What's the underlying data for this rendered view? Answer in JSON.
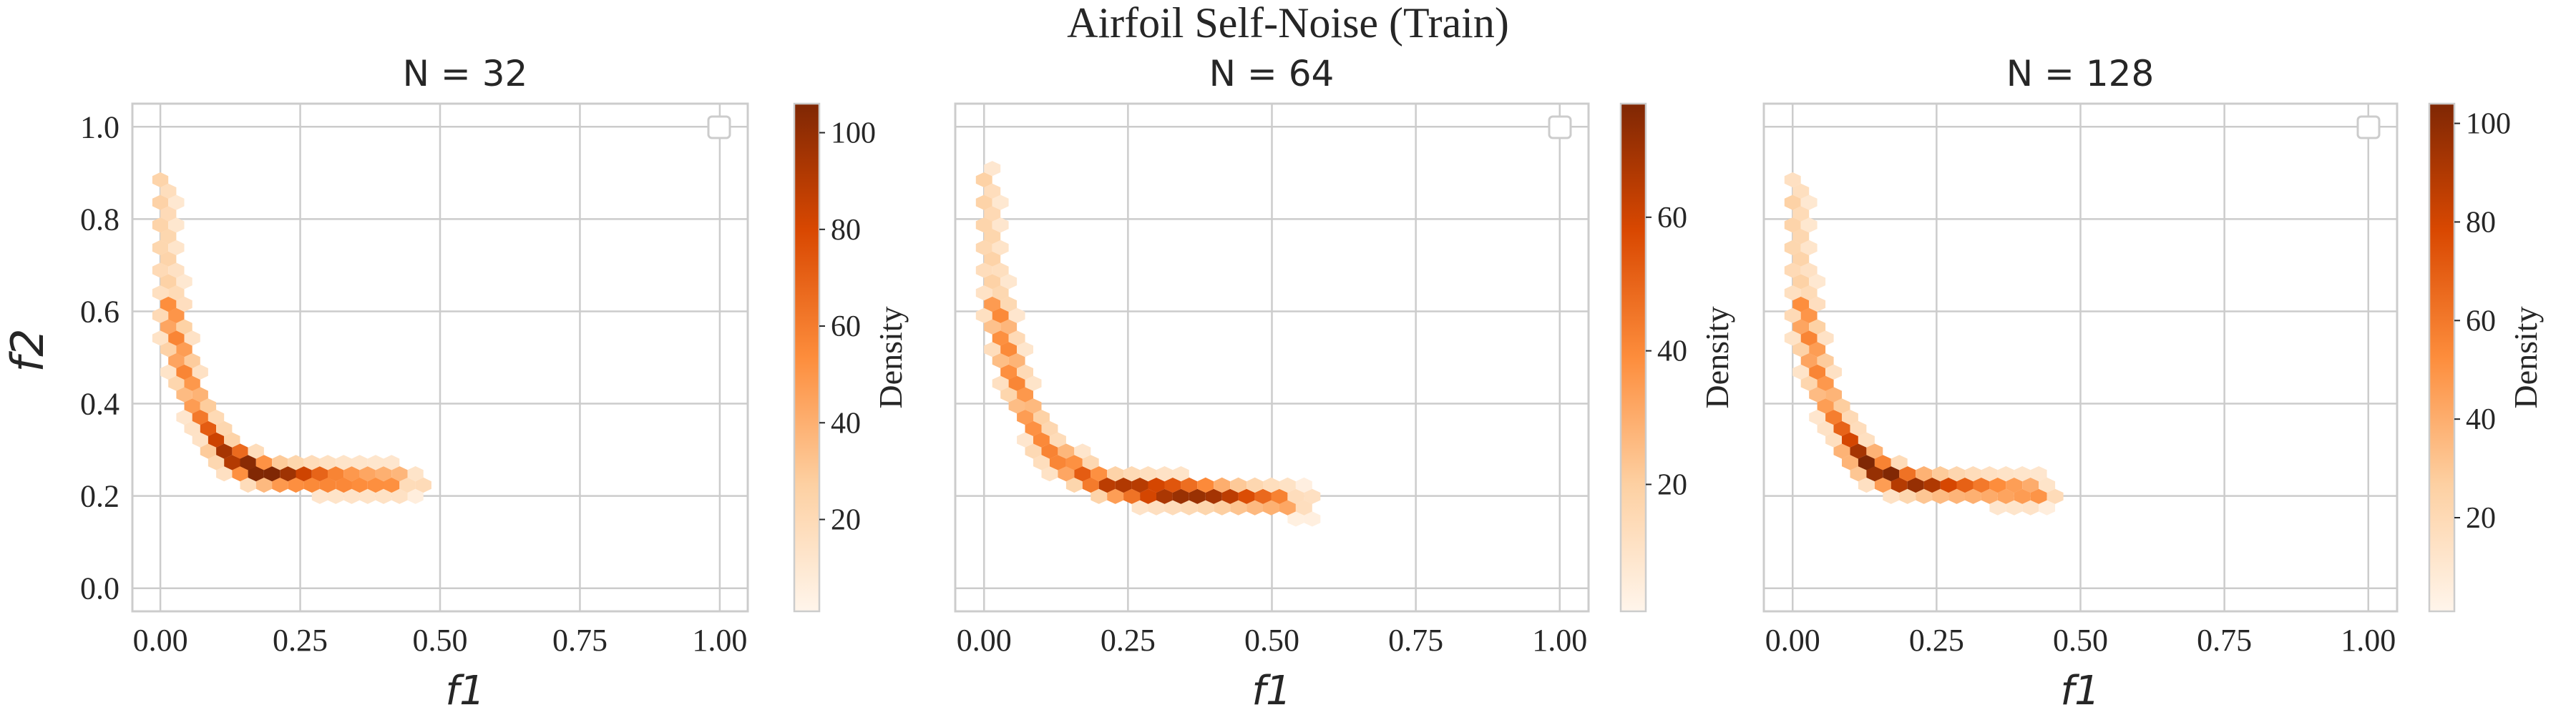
{
  "figure": {
    "suptitle": "Airfoil Self-Noise (Train)"
  },
  "colors": {
    "cmap_low": "#fff5eb",
    "cmap_mid1": "#fdd0a2",
    "cmap_mid2": "#fd8d3c",
    "cmap_mid3": "#d94801",
    "cmap_high": "#7f2704",
    "grid": "#cccccc",
    "spine": "#cccccc"
  },
  "chart_data": [
    {
      "type": "hexbin",
      "title": "N = 32",
      "xlabel": "f1",
      "ylabel": "f2",
      "xlim": [
        -0.05,
        1.05
      ],
      "ylim": [
        -0.05,
        1.05
      ],
      "xticks": [
        "0.00",
        "0.25",
        "0.50",
        "0.75",
        "1.00"
      ],
      "xtick_values": [
        0,
        0.25,
        0.5,
        0.75,
        1.0
      ],
      "yticks": [
        "0.0",
        "0.2",
        "0.4",
        "0.6",
        "0.8",
        "1.0"
      ],
      "ytick_values": [
        0,
        0.2,
        0.4,
        0.6,
        0.8,
        1.0
      ],
      "grid": true,
      "legend": "top-right (empty)",
      "colorbar": {
        "label": "Density",
        "vmin": 1,
        "vmax": 106,
        "ticks": [
          20,
          40,
          60,
          80,
          100
        ]
      },
      "curve": [
        [
          0.0,
          0.88
        ],
        [
          0.01,
          0.7
        ],
        [
          0.025,
          0.56
        ],
        [
          0.05,
          0.44
        ],
        [
          0.08,
          0.36
        ],
        [
          0.11,
          0.31
        ],
        [
          0.14,
          0.275
        ],
        [
          0.17,
          0.255
        ],
        [
          0.2,
          0.245
        ],
        [
          0.26,
          0.24
        ],
        [
          0.32,
          0.235
        ],
        [
          0.4,
          0.232
        ],
        [
          0.47,
          0.23
        ]
      ],
      "peak_density": [
        0.16,
        0.258
      ]
    },
    {
      "type": "hexbin",
      "title": "N = 64",
      "xlabel": "f1",
      "ylabel": "",
      "xlim": [
        -0.05,
        1.05
      ],
      "ylim": [
        -0.05,
        1.05
      ],
      "xticks": [
        "0.00",
        "0.25",
        "0.50",
        "0.75",
        "1.00"
      ],
      "xtick_values": [
        0,
        0.25,
        0.5,
        0.75,
        1.0
      ],
      "yticks": [],
      "ytick_values": [],
      "grid": true,
      "legend": "top-right (empty)",
      "colorbar": {
        "label": "Density",
        "vmin": 1,
        "vmax": 77,
        "ticks": [
          20,
          40,
          60
        ]
      },
      "curve": [
        [
          0.0,
          0.89
        ],
        [
          0.01,
          0.72
        ],
        [
          0.025,
          0.59
        ],
        [
          0.05,
          0.46
        ],
        [
          0.08,
          0.37
        ],
        [
          0.11,
          0.31
        ],
        [
          0.14,
          0.27
        ],
        [
          0.18,
          0.24
        ],
        [
          0.22,
          0.22
        ],
        [
          0.3,
          0.21
        ],
        [
          0.38,
          0.205
        ],
        [
          0.47,
          0.195
        ],
        [
          0.57,
          0.185
        ]
      ],
      "peak_density": [
        0.32,
        0.21
      ]
    },
    {
      "type": "hexbin",
      "title": "N = 128",
      "xlabel": "f1",
      "ylabel": "",
      "xlim": [
        -0.05,
        1.05
      ],
      "ylim": [
        -0.05,
        1.05
      ],
      "xticks": [
        "0.00",
        "0.25",
        "0.50",
        "0.75",
        "1.00"
      ],
      "xtick_values": [
        0,
        0.25,
        0.5,
        0.75,
        1.0
      ],
      "yticks": [],
      "ytick_values": [],
      "grid": true,
      "legend": "top-right (empty)",
      "colorbar": {
        "label": "Density",
        "vmin": 1,
        "vmax": 104,
        "ticks": [
          20,
          40,
          60,
          80,
          100
        ]
      },
      "curve": [
        [
          0.0,
          0.87
        ],
        [
          0.01,
          0.7
        ],
        [
          0.025,
          0.56
        ],
        [
          0.05,
          0.44
        ],
        [
          0.08,
          0.36
        ],
        [
          0.11,
          0.3
        ],
        [
          0.14,
          0.26
        ],
        [
          0.18,
          0.235
        ],
        [
          0.22,
          0.225
        ],
        [
          0.27,
          0.22
        ],
        [
          0.34,
          0.215
        ],
        [
          0.4,
          0.21
        ],
        [
          0.46,
          0.205
        ]
      ],
      "peak_density": [
        0.15,
        0.245
      ]
    }
  ]
}
